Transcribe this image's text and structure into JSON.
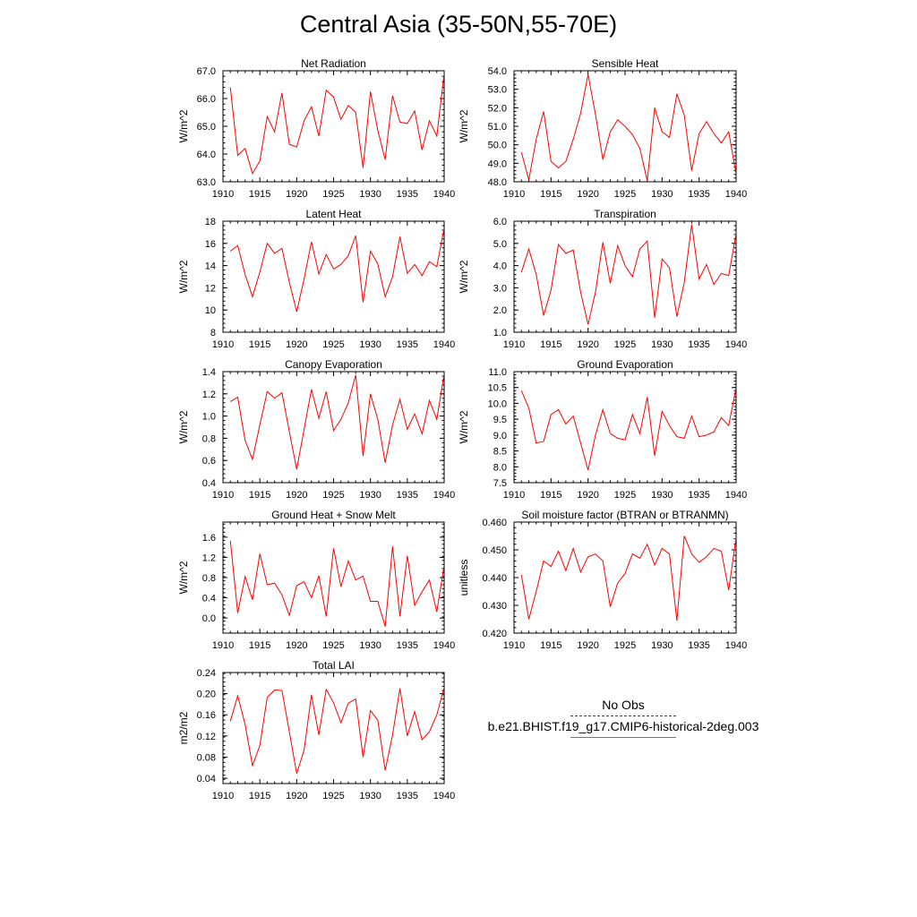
{
  "title": "Central Asia (35-50N,55-70E)",
  "legend": {
    "obs_label": "No Obs",
    "model_label": "b.e21.BHIST.f19_g17.CMIP6-historical-2deg.003",
    "obs_color": "#3b3b9a",
    "model_color": "#ff0000"
  },
  "chart_data": [
    {
      "type": "line",
      "title": "Net Radiation",
      "ylabel": "W/m^2",
      "xlim": [
        1910,
        1940
      ],
      "ylim": [
        63,
        67
      ],
      "yticks": [
        "63.0",
        "64.0",
        "65.0",
        "66.0",
        "67.0"
      ],
      "xticks": [
        "1910",
        "1915",
        "1920",
        "1925",
        "1930",
        "1935",
        "1940"
      ],
      "x_start": 1911,
      "series": [
        {
          "color": "#ff0000",
          "values": [
            66.4,
            63.95,
            64.2,
            63.3,
            63.75,
            65.35,
            64.8,
            66.2,
            64.35,
            64.25,
            65.2,
            65.7,
            64.65,
            66.3,
            66.05,
            65.25,
            65.75,
            65.5,
            63.5,
            66.25,
            64.85,
            63.8,
            66.1,
            65.15,
            65.1,
            65.55,
            64.15,
            65.2,
            64.65,
            66.9
          ]
        }
      ]
    },
    {
      "type": "line",
      "title": "Sensible Heat",
      "ylabel": "W/m^2",
      "xlim": [
        1910,
        1940
      ],
      "ylim": [
        48,
        54
      ],
      "yticks": [
        "48.0",
        "49.0",
        "50.0",
        "51.0",
        "52.0",
        "53.0",
        "54.0"
      ],
      "xticks": [
        "1910",
        "1915",
        "1920",
        "1925",
        "1930",
        "1935",
        "1940"
      ],
      "x_start": 1911,
      "series": [
        {
          "color": "#ff0000",
          "values": [
            49.6,
            48.1,
            50.3,
            51.8,
            49.1,
            48.75,
            49.1,
            50.3,
            51.7,
            53.8,
            51.65,
            49.2,
            50.7,
            51.35,
            51.0,
            50.55,
            49.8,
            48.05,
            52.0,
            50.7,
            50.4,
            52.75,
            51.6,
            48.6,
            50.6,
            51.25,
            50.6,
            50.1,
            50.7,
            48.4
          ]
        }
      ]
    },
    {
      "type": "line",
      "title": "Latent Heat",
      "ylabel": "W/m^2",
      "xlim": [
        1910,
        1940
      ],
      "ylim": [
        8,
        18
      ],
      "yticks": [
        "8",
        "10",
        "12",
        "14",
        "16",
        "18"
      ],
      "xticks": [
        "1910",
        "1915",
        "1920",
        "1925",
        "1930",
        "1935",
        "1940"
      ],
      "x_start": 1911,
      "series": [
        {
          "color": "#ff0000",
          "values": [
            15.3,
            15.8,
            13.2,
            11.2,
            13.4,
            16.0,
            15.1,
            15.55,
            12.5,
            9.85,
            12.8,
            16.15,
            13.25,
            15.0,
            13.7,
            14.1,
            14.9,
            16.7,
            10.7,
            15.3,
            14.15,
            11.2,
            13.0,
            16.6,
            13.3,
            14.1,
            13.1,
            14.35,
            13.9,
            17.4
          ]
        }
      ]
    },
    {
      "type": "line",
      "title": "Transpiration",
      "ylabel": "W/m^2",
      "xlim": [
        1910,
        1940
      ],
      "ylim": [
        1,
        6
      ],
      "yticks": [
        "1.0",
        "2.0",
        "3.0",
        "4.0",
        "5.0",
        "6.0"
      ],
      "xticks": [
        "1910",
        "1915",
        "1920",
        "1925",
        "1930",
        "1935",
        "1940"
      ],
      "x_start": 1911,
      "series": [
        {
          "color": "#ff0000",
          "values": [
            3.7,
            4.75,
            3.6,
            1.75,
            2.9,
            4.95,
            4.55,
            4.7,
            2.8,
            1.35,
            2.8,
            5.05,
            3.2,
            4.9,
            4.0,
            3.5,
            4.75,
            5.1,
            1.65,
            4.3,
            3.9,
            1.7,
            3.25,
            5.85,
            3.4,
            4.05,
            3.15,
            3.65,
            3.55,
            5.45
          ]
        }
      ]
    },
    {
      "type": "line",
      "title": "Canopy Evaporation",
      "ylabel": "W/m^2",
      "xlim": [
        1910,
        1940
      ],
      "ylim": [
        0.4,
        1.4
      ],
      "yticks": [
        "0.4",
        "0.6",
        "0.8",
        "1.0",
        "1.2",
        "1.4"
      ],
      "xticks": [
        "1910",
        "1915",
        "1920",
        "1925",
        "1930",
        "1935",
        "1940"
      ],
      "x_start": 1911,
      "series": [
        {
          "color": "#ff0000",
          "values": [
            1.13,
            1.17,
            0.78,
            0.61,
            0.92,
            1.22,
            1.16,
            1.21,
            0.86,
            0.52,
            0.88,
            1.24,
            0.98,
            1.22,
            0.87,
            0.97,
            1.12,
            1.37,
            0.64,
            1.2,
            0.97,
            0.58,
            0.92,
            1.15,
            0.88,
            1.02,
            0.84,
            1.14,
            0.97,
            1.38
          ]
        }
      ]
    },
    {
      "type": "line",
      "title": "Ground Evaporation",
      "ylabel": "W/m^2",
      "xlim": [
        1910,
        1940
      ],
      "ylim": [
        7.5,
        11.0
      ],
      "yticks": [
        "7.5",
        "8.0",
        "8.5",
        "9.0",
        "9.5",
        "10.0",
        "10.5",
        "11.0"
      ],
      "xticks": [
        "1910",
        "1915",
        "1920",
        "1925",
        "1930",
        "1935",
        "1940"
      ],
      "x_start": 1911,
      "series": [
        {
          "color": "#ff0000",
          "values": [
            10.4,
            9.85,
            8.75,
            8.8,
            9.65,
            9.8,
            9.35,
            9.6,
            8.75,
            7.9,
            9.0,
            9.8,
            9.05,
            8.9,
            8.85,
            9.65,
            9.05,
            10.2,
            8.35,
            9.75,
            9.3,
            8.95,
            8.9,
            9.6,
            8.95,
            9.0,
            9.1,
            9.55,
            9.3,
            10.5
          ]
        }
      ]
    },
    {
      "type": "line",
      "title": "Ground Heat + Snow Melt",
      "ylabel": "W/m^2",
      "xlim": [
        1910,
        1940
      ],
      "ylim": [
        -0.3,
        1.9
      ],
      "yticks": [
        "0.0",
        "0.4",
        "0.8",
        "1.2",
        "1.6"
      ],
      "ytick_values": [
        0.0,
        0.4,
        0.8,
        1.2,
        1.6
      ],
      "xticks": [
        "1910",
        "1915",
        "1920",
        "1925",
        "1930",
        "1935",
        "1940"
      ],
      "x_start": 1911,
      "series": [
        {
          "color": "#ff0000",
          "values": [
            1.53,
            0.1,
            0.82,
            0.36,
            1.27,
            0.66,
            0.69,
            0.46,
            0.05,
            0.64,
            0.72,
            0.4,
            0.84,
            0.03,
            1.38,
            0.62,
            1.13,
            0.75,
            0.83,
            0.33,
            0.33,
            -0.17,
            1.42,
            0.03,
            1.23,
            0.25,
            0.52,
            0.75,
            0.12,
            1.05
          ]
        }
      ]
    },
    {
      "type": "line",
      "title": "Soil moisture factor (BTRAN or BTRANMN)",
      "ylabel": "unitless",
      "xlim": [
        1910,
        1940
      ],
      "ylim": [
        0.42,
        0.46
      ],
      "yticks": [
        "0.420",
        "0.430",
        "0.440",
        "0.450",
        "0.460"
      ],
      "xticks": [
        "1910",
        "1915",
        "1920",
        "1925",
        "1930",
        "1935",
        "1940"
      ],
      "x_start": 1911,
      "series": [
        {
          "color": "#ff0000",
          "values": [
            0.441,
            0.425,
            0.435,
            0.446,
            0.444,
            0.4495,
            0.4425,
            0.4505,
            0.442,
            0.4475,
            0.4485,
            0.446,
            0.4295,
            0.438,
            0.4415,
            0.4485,
            0.447,
            0.452,
            0.4445,
            0.4505,
            0.4485,
            0.4245,
            0.455,
            0.4485,
            0.4455,
            0.4475,
            0.4505,
            0.4495,
            0.4355,
            0.4545
          ]
        }
      ]
    },
    {
      "type": "line",
      "title": "Total LAI",
      "ylabel": "m2/m2",
      "xlim": [
        1910,
        1940
      ],
      "ylim": [
        0.03,
        0.24
      ],
      "yticks": [
        "0.04",
        "0.08",
        "0.12",
        "0.16",
        "0.20",
        "0.24"
      ],
      "ytick_values": [
        0.04,
        0.08,
        0.12,
        0.16,
        0.2,
        0.24
      ],
      "xticks": [
        "1910",
        "1915",
        "1920",
        "1925",
        "1930",
        "1935",
        "1940"
      ],
      "x_start": 1911,
      "series": [
        {
          "color": "#ff0000",
          "values": [
            0.148,
            0.196,
            0.142,
            0.064,
            0.102,
            0.193,
            0.207,
            0.206,
            0.128,
            0.049,
            0.093,
            0.198,
            0.122,
            0.208,
            0.183,
            0.145,
            0.182,
            0.19,
            0.08,
            0.168,
            0.15,
            0.055,
            0.122,
            0.21,
            0.12,
            0.166,
            0.113,
            0.128,
            0.16,
            0.212
          ]
        }
      ]
    }
  ]
}
